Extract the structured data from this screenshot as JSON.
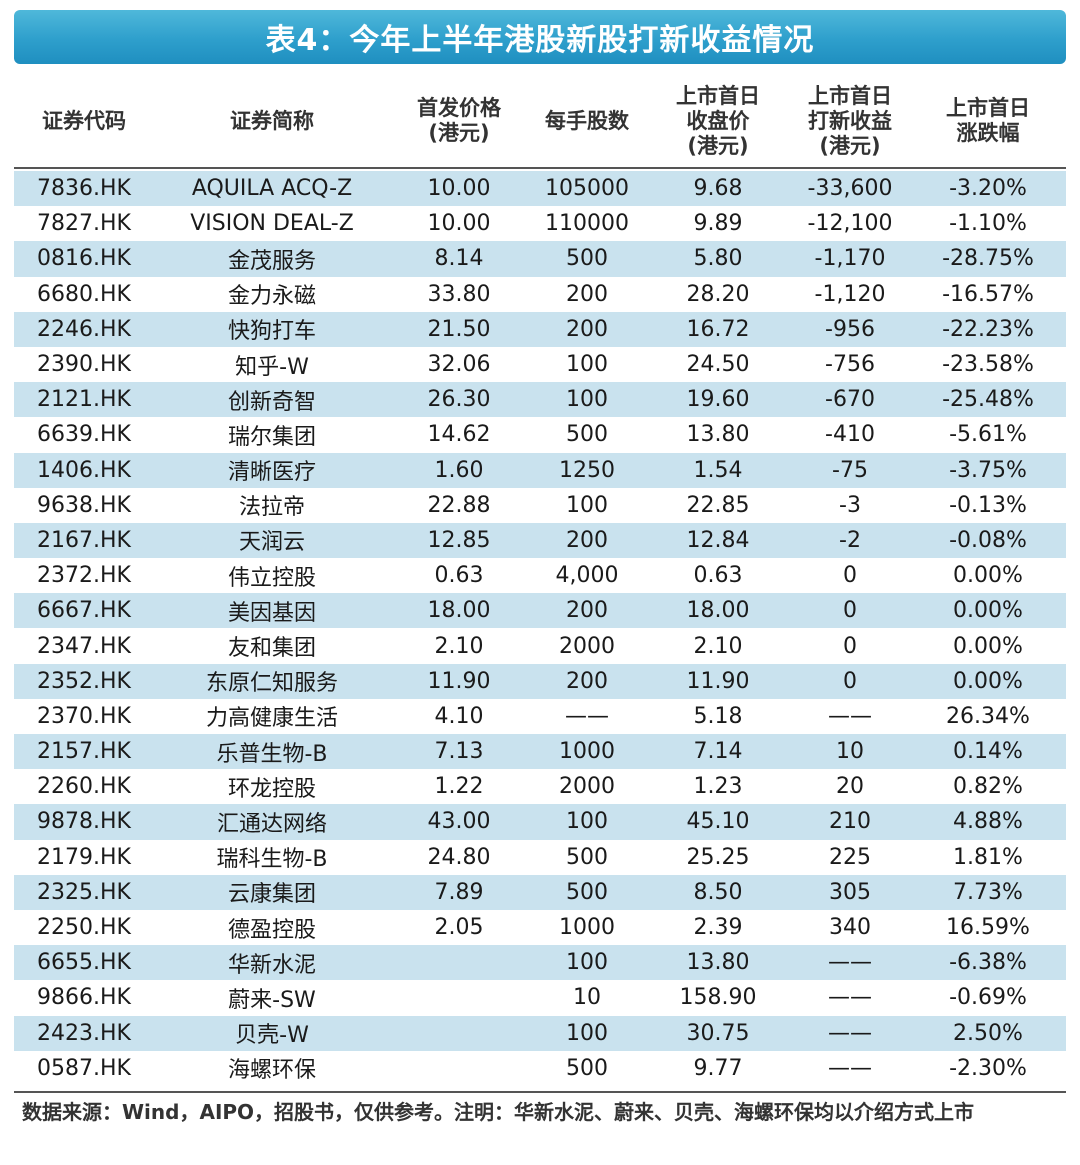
{
  "title": "表4：今年上半年港股新股打新收益情况",
  "headers": [
    [
      "证券代码"
    ],
    [
      "证券简称"
    ],
    [
      "首发价格",
      "(港元)"
    ],
    [
      "每手股数"
    ],
    [
      "上市首日",
      "收盘价",
      "(港元)"
    ],
    [
      "上市首日",
      "打新收益",
      "(港元)"
    ],
    [
      "上市首日",
      "涨跌幅"
    ]
  ],
  "rows": [
    [
      "7836.HK",
      "AQUILA ACQ-Z",
      "10.00",
      "105000",
      "9.68",
      "-33,600",
      "-3.20%"
    ],
    [
      "7827.HK",
      "VISION DEAL-Z",
      "10.00",
      "110000",
      "9.89",
      "-12,100",
      "-1.10%"
    ],
    [
      "0816.HK",
      "金茂服务",
      "8.14",
      "500",
      "5.80",
      "-1,170",
      "-28.75%"
    ],
    [
      "6680.HK",
      "金力永磁",
      "33.80",
      "200",
      "28.20",
      "-1,120",
      "-16.57%"
    ],
    [
      "2246.HK",
      "快狗打车",
      "21.50",
      "200",
      "16.72",
      "-956",
      "-22.23%"
    ],
    [
      "2390.HK",
      "知乎-W",
      "32.06",
      "100",
      "24.50",
      "-756",
      "-23.58%"
    ],
    [
      "2121.HK",
      "创新奇智",
      "26.30",
      "100",
      "19.60",
      "-670",
      "-25.48%"
    ],
    [
      "6639.HK",
      "瑞尔集团",
      "14.62",
      "500",
      "13.80",
      "-410",
      "-5.61%"
    ],
    [
      "1406.HK",
      "清晰医疗",
      "1.60",
      "1250",
      "1.54",
      "-75",
      "-3.75%"
    ],
    [
      "9638.HK",
      "法拉帝",
      "22.88",
      "100",
      "22.85",
      "-3",
      "-0.13%"
    ],
    [
      "2167.HK",
      "天润云",
      "12.85",
      "200",
      "12.84",
      "-2",
      "-0.08%"
    ],
    [
      "2372.HK",
      "伟立控股",
      "0.63",
      "4,000",
      "0.63",
      "0",
      "0.00%"
    ],
    [
      "6667.HK",
      "美因基因",
      "18.00",
      "200",
      "18.00",
      "0",
      "0.00%"
    ],
    [
      "2347.HK",
      "友和集团",
      "2.10",
      "2000",
      "2.10",
      "0",
      "0.00%"
    ],
    [
      "2352.HK",
      "东原仁知服务",
      "11.90",
      "200",
      "11.90",
      "0",
      "0.00%"
    ],
    [
      "2370.HK",
      "力高健康生活",
      "4.10",
      "——",
      "5.18",
      "——",
      "26.34%"
    ],
    [
      "2157.HK",
      "乐普生物-B",
      "7.13",
      "1000",
      "7.14",
      "10",
      "0.14%"
    ],
    [
      "2260.HK",
      "环龙控股",
      "1.22",
      "2000",
      "1.23",
      "20",
      "0.82%"
    ],
    [
      "9878.HK",
      "汇通达网络",
      "43.00",
      "100",
      "45.10",
      "210",
      "4.88%"
    ],
    [
      "2179.HK",
      "瑞科生物-B",
      "24.80",
      "500",
      "25.25",
      "225",
      "1.81%"
    ],
    [
      "2325.HK",
      "云康集团",
      "7.89",
      "500",
      "8.50",
      "305",
      "7.73%"
    ],
    [
      "2250.HK",
      "德盈控股",
      "2.05",
      "1000",
      "2.39",
      "340",
      "16.59%"
    ],
    [
      "6655.HK",
      "华新水泥",
      "",
      "100",
      "13.80",
      "——",
      "-6.38%"
    ],
    [
      "9866.HK",
      "蔚来-SW",
      "",
      "10",
      "158.90",
      "——",
      "-0.69%"
    ],
    [
      "2423.HK",
      "贝壳-W",
      "",
      "100",
      "30.75",
      "——",
      "2.50%"
    ],
    [
      "0587.HK",
      "海螺环保",
      "",
      "500",
      "9.77",
      "——",
      "-2.30%"
    ]
  ],
  "footnote": "数据来源：Wind，AIPO，招股书，仅供参考。注明：华新水泥、蔚来、贝壳、海螺环保均以介绍方式上市",
  "colors": {
    "title_bar": "#2e9fcc",
    "row_shade": "#c9e2ee"
  }
}
